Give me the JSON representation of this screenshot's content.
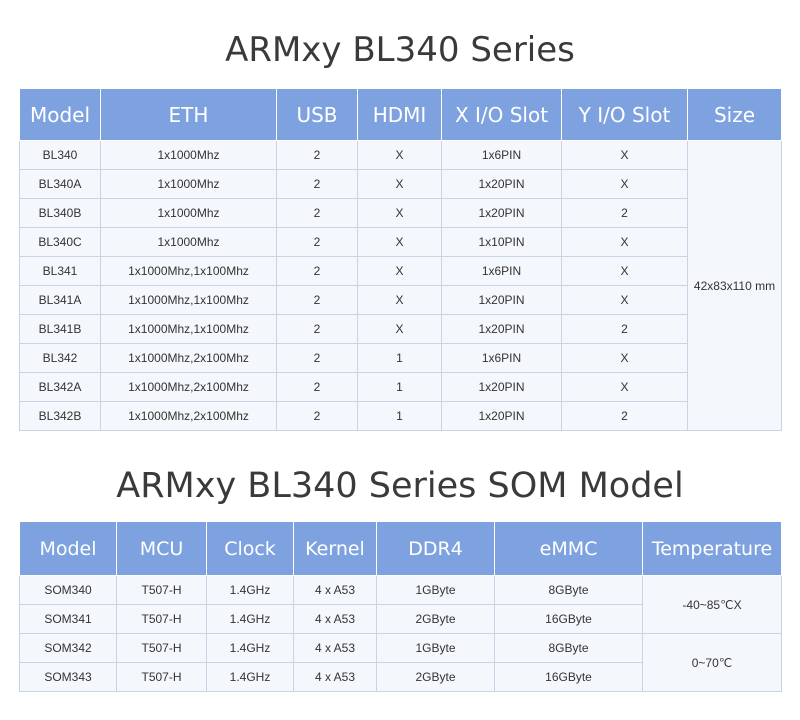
{
  "table1": {
    "title": "ARMxy BL340 Series",
    "headers": [
      "Model",
      "ETH",
      "USB",
      "HDMI",
      "X I/O Slot",
      "Y I/O Slot",
      "Size"
    ],
    "rows": [
      [
        "BL340",
        "1x1000Mhz",
        "2",
        "X",
        "1x6PIN",
        "X"
      ],
      [
        "BL340A",
        "1x1000Mhz",
        "2",
        "X",
        "1x20PIN",
        "X"
      ],
      [
        "BL340B",
        "1x1000Mhz",
        "2",
        "X",
        "1x20PIN",
        "2"
      ],
      [
        "BL340C",
        "1x1000Mhz",
        "2",
        "X",
        "1x10PIN",
        "X"
      ],
      [
        "BL341",
        "1x1000Mhz,1x100Mhz",
        "2",
        "X",
        "1x6PIN",
        "X"
      ],
      [
        "BL341A",
        "1x1000Mhz,1x100Mhz",
        "2",
        "X",
        "1x20PIN",
        "X"
      ],
      [
        "BL341B",
        "1x1000Mhz,1x100Mhz",
        "2",
        "X",
        "1x20PIN",
        "2"
      ],
      [
        "BL342",
        "1x1000Mhz,2x100Mhz",
        "2",
        "1",
        "1x6PIN",
        "X"
      ],
      [
        "BL342A",
        "1x1000Mhz,2x100Mhz",
        "2",
        "1",
        "1x20PIN",
        "X"
      ],
      [
        "BL342B",
        "1x1000Mhz,2x100Mhz",
        "2",
        "1",
        "1x20PIN",
        "2"
      ]
    ],
    "size": "42x83x110 mm"
  },
  "table2": {
    "title": "ARMxy BL340 Series SOM Model",
    "headers": [
      "Model",
      "MCU",
      "Clock",
      "Kernel",
      "DDR4",
      "eMMC",
      "Temperature"
    ],
    "rows": [
      [
        "SOM340",
        "T507-H",
        "1.4GHz",
        "4 x A53",
        "1GByte",
        "8GByte"
      ],
      [
        "SOM341",
        "T507-H",
        "1.4GHz",
        "4 x A53",
        "2GByte",
        "16GByte"
      ],
      [
        "SOM342",
        "T507-H",
        "1.4GHz",
        "4 x A53",
        "1GByte",
        "8GByte"
      ],
      [
        "SOM343",
        "T507-H",
        "1.4GHz",
        "4 x A53",
        "2GByte",
        "16GByte"
      ]
    ],
    "temperatures": [
      "-40~85℃X",
      "0~70℃"
    ]
  }
}
